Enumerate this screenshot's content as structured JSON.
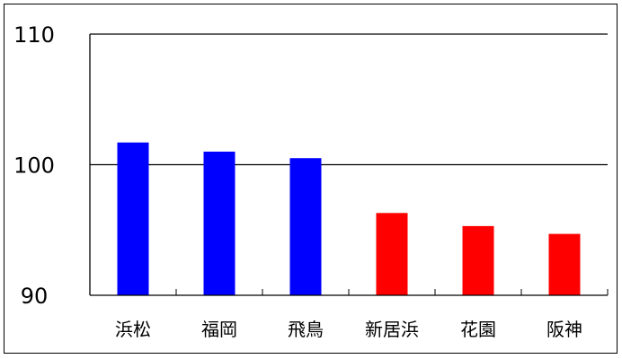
{
  "chart_data": {
    "type": "bar",
    "title": "",
    "xlabel": "",
    "ylabel": "",
    "categories": [
      "浜松",
      "福岡",
      "飛鳥",
      "新居浜",
      "花園",
      "阪神"
    ],
    "values": [
      101.7,
      101.0,
      100.5,
      96.3,
      95.3,
      94.7
    ],
    "bar_colors": [
      "#0000ff",
      "#0000ff",
      "#0000ff",
      "#ff0000",
      "#ff0000",
      "#ff0000"
    ],
    "ylim": [
      90,
      110
    ],
    "yticks": [
      90,
      100,
      110
    ],
    "grid": "horizontal major lines",
    "legend": "none"
  }
}
